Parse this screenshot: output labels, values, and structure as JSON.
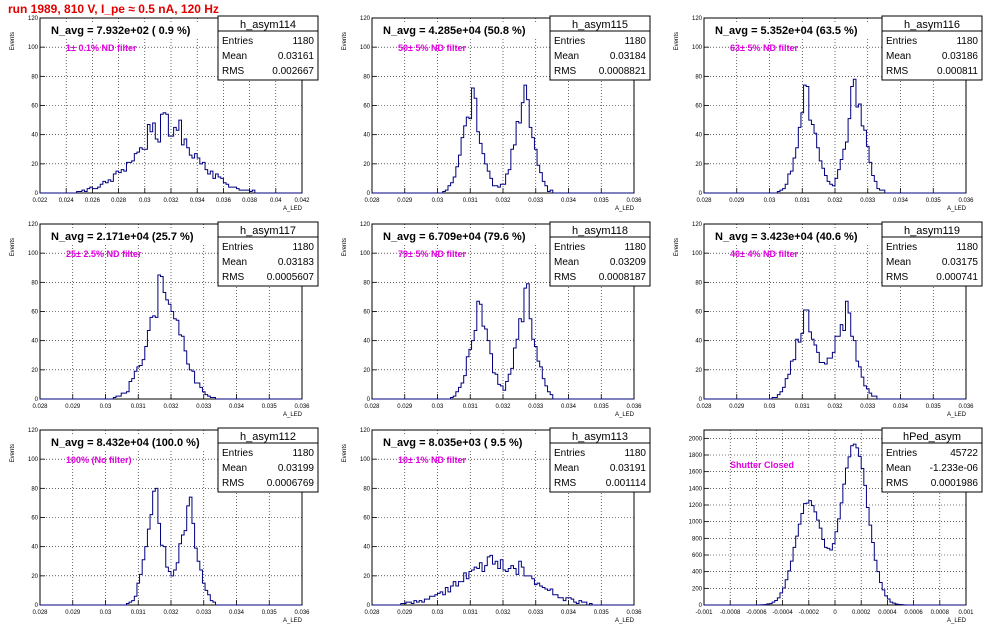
{
  "page": {
    "title": "run 1989,   810 V, I_pe ≈ 0.5 nA, 120 Hz",
    "colors": {
      "title": "#e00000",
      "histogram": "#000080",
      "annotation": "#e000e0",
      "grid": "#000000"
    }
  },
  "chart_data": [
    {
      "type": "histogram",
      "name": "h_asym114",
      "ylabel": "Events",
      "xlabel": "A_LED",
      "xlim": [
        0.022,
        0.042
      ],
      "ylim": [
        0,
        120
      ],
      "grid": true,
      "yticks": [
        0,
        20,
        40,
        60,
        80,
        100,
        120
      ],
      "xticks": [
        0.022,
        0.024,
        0.026,
        0.028,
        0.03,
        0.032,
        0.034,
        0.036,
        0.038,
        0.04,
        0.042
      ],
      "header": "N_avg = 7.932e+02 ( 0.9 %)",
      "note": "1± 0.1% ND filter",
      "stats": {
        "entries": "1180",
        "mean": "0.03161",
        "rms": "0.002667"
      },
      "peaks": [
        {
          "mu": 0.0316,
          "sigma": 0.00245,
          "amp": 40
        }
      ],
      "spikes": [
        0.0305,
        0.0315,
        0.0325
      ]
    },
    {
      "type": "histogram",
      "name": "h_asym115",
      "ylabel": "Events",
      "xlabel": "A_LED",
      "xlim": [
        0.028,
        0.036
      ],
      "ylim": [
        0,
        120
      ],
      "grid": true,
      "yticks": [
        0,
        20,
        40,
        60,
        80,
        100,
        120
      ],
      "xticks": [
        0.028,
        0.029,
        0.03,
        0.031,
        0.032,
        0.033,
        0.034,
        0.035,
        0.036
      ],
      "header": "N_avg = 4.285e+04 (50.8 %)",
      "note": "50± 5% ND filter",
      "stats": {
        "entries": "1180",
        "mean": "0.03184",
        "rms": "0.0008821"
      },
      "peaks": [
        {
          "mu": 0.03105,
          "sigma": 0.0003,
          "amp": 55
        },
        {
          "mu": 0.03265,
          "sigma": 0.0003,
          "amp": 58
        }
      ],
      "spikes": [
        0.0311,
        0.0327
      ]
    },
    {
      "type": "histogram",
      "name": "h_asym116",
      "ylabel": "Events",
      "xlabel": "A_LED",
      "xlim": [
        0.028,
        0.036
      ],
      "ylim": [
        0,
        120
      ],
      "grid": true,
      "yticks": [
        0,
        20,
        40,
        60,
        80,
        100,
        120
      ],
      "xticks": [
        0.028,
        0.029,
        0.03,
        0.031,
        0.032,
        0.033,
        0.034,
        0.035,
        0.036
      ],
      "header": "N_avg = 5.352e+04 (63.5 %)",
      "note": "63± 5% ND filter",
      "stats": {
        "entries": "1180",
        "mean": "0.03186",
        "rms": "0.000811"
      },
      "peaks": [
        {
          "mu": 0.03115,
          "sigma": 0.0003,
          "amp": 56
        },
        {
          "mu": 0.03265,
          "sigma": 0.0003,
          "amp": 62
        }
      ],
      "spikes": [
        0.0311,
        0.0326
      ]
    },
    {
      "type": "histogram",
      "name": "h_asym117",
      "ylabel": "Events",
      "xlabel": "A_LED",
      "xlim": [
        0.028,
        0.036
      ],
      "ylim": [
        0,
        120
      ],
      "grid": true,
      "yticks": [
        0,
        20,
        40,
        60,
        80,
        100,
        120
      ],
      "xticks": [
        0.028,
        0.029,
        0.03,
        0.031,
        0.032,
        0.033,
        0.034,
        0.035,
        0.036
      ],
      "header": "N_avg = 2.171e+04 (25.7 %)",
      "note": "25± 2.5% ND filter",
      "stats": {
        "entries": "1180",
        "mean": "0.03183",
        "rms": "0.0005607"
      },
      "peaks": [
        {
          "mu": 0.0318,
          "sigma": 0.00052,
          "amp": 68
        }
      ],
      "spikes": [
        0.0317
      ]
    },
    {
      "type": "histogram",
      "name": "h_asym118",
      "ylabel": "Events",
      "xlabel": "A_LED",
      "xlim": [
        0.028,
        0.036
      ],
      "ylim": [
        0,
        120
      ],
      "grid": true,
      "yticks": [
        0,
        20,
        40,
        60,
        80,
        100,
        120
      ],
      "xticks": [
        0.028,
        0.029,
        0.03,
        0.031,
        0.032,
        0.033,
        0.034,
        0.035,
        0.036
      ],
      "header": "N_avg = 6.709e+04 (79.6 %)",
      "note": "79± 5% ND filter",
      "stats": {
        "entries": "1180",
        "mean": "0.03209",
        "rms": "0.0008187"
      },
      "peaks": [
        {
          "mu": 0.0313,
          "sigma": 0.0003,
          "amp": 56
        },
        {
          "mu": 0.0327,
          "sigma": 0.0003,
          "amp": 60
        }
      ],
      "spikes": [
        0.0313,
        0.0327
      ]
    },
    {
      "type": "histogram",
      "name": "h_asym119",
      "ylabel": "Events",
      "xlabel": "A_LED",
      "xlim": [
        0.028,
        0.036
      ],
      "ylim": [
        0,
        120
      ],
      "grid": true,
      "yticks": [
        0,
        20,
        40,
        60,
        80,
        100,
        120
      ],
      "xticks": [
        0.028,
        0.029,
        0.03,
        0.031,
        0.032,
        0.033,
        0.034,
        0.035,
        0.036
      ],
      "header": "N_avg = 3.423e+04 (40.6 %)",
      "note": "40± 4% ND filter",
      "stats": {
        "entries": "1180",
        "mean": "0.03175",
        "rms": "0.000741"
      },
      "peaks": [
        {
          "mu": 0.0311,
          "sigma": 0.00035,
          "amp": 50
        },
        {
          "mu": 0.0323,
          "sigma": 0.00035,
          "amp": 52
        }
      ],
      "spikes": [
        0.0311,
        0.0324
      ]
    },
    {
      "type": "histogram",
      "name": "h_asym112",
      "ylabel": "Events",
      "xlabel": "A_LED",
      "xlim": [
        0.028,
        0.036
      ],
      "ylim": [
        0,
        120
      ],
      "grid": true,
      "yticks": [
        0,
        20,
        40,
        60,
        80,
        100,
        120
      ],
      "xticks": [
        0.028,
        0.029,
        0.03,
        0.031,
        0.032,
        0.033,
        0.034,
        0.035,
        0.036
      ],
      "header": "N_avg = 8.432e+04 (100.0 %)",
      "note": "100% (No filter)",
      "stats": {
        "entries": "1180",
        "mean": "0.03199",
        "rms": "0.0006769"
      },
      "peaks": [
        {
          "mu": 0.0315,
          "sigma": 0.00028,
          "amp": 62
        },
        {
          "mu": 0.03255,
          "sigma": 0.00028,
          "amp": 58
        }
      ],
      "spikes": [
        0.0315,
        0.0326
      ]
    },
    {
      "type": "histogram",
      "name": "h_asym113",
      "ylabel": "Events",
      "xlabel": "A_LED",
      "xlim": [
        0.028,
        0.036
      ],
      "ylim": [
        0,
        120
      ],
      "grid": true,
      "yticks": [
        0,
        20,
        40,
        60,
        80,
        100,
        120
      ],
      "xticks": [
        0.028,
        0.029,
        0.03,
        0.031,
        0.032,
        0.033,
        0.034,
        0.035,
        0.036
      ],
      "header": "N_avg = 8.035e+03 ( 9.5 %)",
      "note": "10± 1% ND filter",
      "stats": {
        "entries": "1180",
        "mean": "0.03191",
        "rms": "0.001114"
      },
      "peaks": [
        {
          "mu": 0.0318,
          "sigma": 0.0011,
          "amp": 28
        }
      ],
      "spikes": [
        0.0316,
        0.0326
      ]
    },
    {
      "type": "histogram",
      "name": "hPed_asym",
      "ylabel": "",
      "xlabel": "A_LED",
      "xlim": [
        -0.001,
        0.001
      ],
      "ylim": [
        0,
        2100
      ],
      "grid": true,
      "yticks": [
        0,
        200,
        400,
        600,
        800,
        1000,
        1200,
        1400,
        1600,
        1800,
        2000
      ],
      "xticks": [
        -0.001,
        -0.0008,
        -0.0006,
        -0.0004,
        -0.0002,
        0,
        0.0002,
        0.0004,
        0.0006,
        0.0008,
        0.001
      ],
      "header": "",
      "note": "Shutter Closed",
      "stats": {
        "entries": "45722",
        "mean": "-1.233e-06",
        "rms": "0.0001986"
      },
      "peaks": [
        {
          "mu": -0.0002,
          "sigma": 0.0001,
          "amp": 1250
        },
        {
          "mu": 0.00015,
          "sigma": 0.0001,
          "amp": 1950
        }
      ],
      "spikes": []
    }
  ]
}
